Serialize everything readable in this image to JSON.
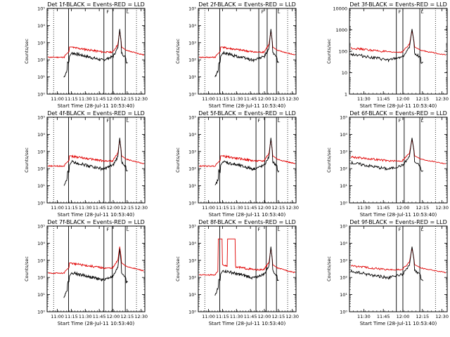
{
  "colors": {
    "black_series": "#000000",
    "red_series": "#e00000",
    "axes": "#000000"
  },
  "ylabel": "Counts/sec",
  "xlabel": "Start Time (28-Jul-11 10:53:40)",
  "chart_data": [
    {
      "type": "line",
      "title": "Det 1f-BLACK = Events-RED = LLD",
      "xticks": [
        "11:00",
        "11:15",
        "11:30",
        "11:45",
        "12:00",
        "12:15",
        "12:30"
      ],
      "yticks": [
        "10⁰",
        "10¹",
        "10²",
        "10³",
        "10⁴",
        "10⁵"
      ],
      "markers": [
        "F",
        "L"
      ],
      "series": [
        {
          "values": []
        },
        {
          "values": []
        }
      ]
    },
    {
      "type": "line",
      "title": "Det 2f-BLACK = Events-RED = LLD",
      "xticks": [
        "11:00",
        "11:15",
        "11:30",
        "11:45",
        "12:00",
        "12:15",
        "12:30"
      ],
      "yticks": [
        "10⁰",
        "10¹",
        "10²",
        "10³",
        "10⁴",
        "10⁵"
      ],
      "markers": [
        "F",
        "L"
      ],
      "series": [
        {
          "values": []
        },
        {
          "values": []
        }
      ]
    },
    {
      "type": "line",
      "title": "Det 3f-BLACK = Events-RED = LLD",
      "xticks": [
        "11:30",
        "11:45",
        "12:00",
        "12:15",
        "12:30"
      ],
      "yticks": [
        "1",
        "10",
        "100",
        "1000",
        "10000"
      ],
      "markers": [
        "F",
        "L"
      ],
      "series": [
        {
          "values": []
        },
        {
          "values": []
        }
      ]
    },
    {
      "type": "line",
      "title": "Det 4f-BLACK = Events-RED = LLD",
      "xticks": [
        "11:00",
        "11:15",
        "11:30",
        "11:45",
        "12:00",
        "12:15",
        "12:30"
      ],
      "yticks": [
        "10⁰",
        "10¹",
        "10²",
        "10³",
        "10⁴",
        "10⁵"
      ],
      "markers": [
        "F",
        "L"
      ],
      "series": [
        {
          "values": []
        },
        {
          "values": []
        }
      ]
    },
    {
      "type": "line",
      "title": "Det 5f-BLACK = Events-RED = LLD",
      "xticks": [
        "11:00",
        "11:15",
        "11:30",
        "11:45",
        "12:00",
        "12:15",
        "12:30"
      ],
      "yticks": [
        "10⁰",
        "10¹",
        "10²",
        "10³",
        "10⁴",
        "10⁵"
      ],
      "markers": [
        "F",
        "L"
      ],
      "series": [
        {
          "values": []
        },
        {
          "values": []
        }
      ]
    },
    {
      "type": "line",
      "title": "Det 6f-BLACK = Events-RED = LLD",
      "xticks": [
        "11:30",
        "11:45",
        "12:00",
        "12:15",
        "12:30"
      ],
      "yticks": [
        "10⁰",
        "10¹",
        "10²",
        "10³",
        "10⁴",
        "10⁵"
      ],
      "markers": [
        "F",
        "L"
      ],
      "series": [
        {
          "values": []
        },
        {
          "values": []
        }
      ]
    },
    {
      "type": "line",
      "title": "Det 7f-BLACK = Events-RED = LLD",
      "xticks": [
        "11:00",
        "11:15",
        "11:30",
        "11:45",
        "12:00",
        "12:15",
        "12:30"
      ],
      "yticks": [
        "10⁰",
        "10¹",
        "10²",
        "10³",
        "10⁴",
        "10⁵"
      ],
      "markers": [
        "F",
        "L"
      ],
      "series": [
        {
          "values": []
        },
        {
          "values": []
        }
      ]
    },
    {
      "type": "line",
      "title": "Det 8f-BLACK = Events-RED = LLD",
      "xticks": [
        "11:00",
        "11:15",
        "11:30",
        "11:45",
        "12:00",
        "12:15",
        "12:30"
      ],
      "yticks": [
        "10⁰",
        "10¹",
        "10²",
        "10³",
        "10⁴",
        "10⁵"
      ],
      "markers": [
        "F",
        "L"
      ],
      "series": [
        {
          "values": []
        },
        {
          "values": []
        }
      ]
    },
    {
      "type": "line",
      "title": "Det 9f-BLACK = Events-RED = LLD",
      "xticks": [
        "11:30",
        "11:45",
        "12:00",
        "12:15",
        "12:30"
      ],
      "yticks": [
        "10⁰",
        "10¹",
        "10²",
        "10³",
        "10⁴",
        "10⁵"
      ],
      "markers": [
        "F",
        "L"
      ],
      "series": [
        {
          "values": []
        },
        {
          "values": []
        }
      ]
    }
  ]
}
